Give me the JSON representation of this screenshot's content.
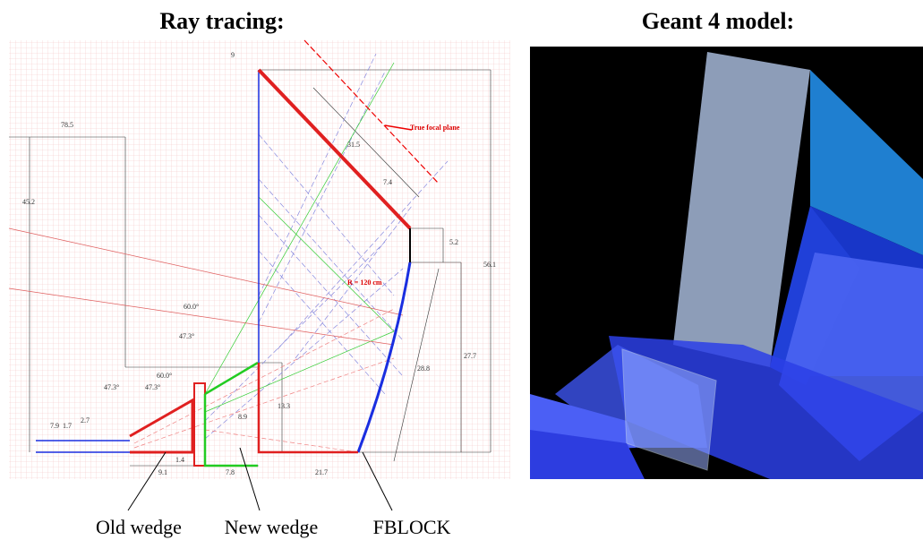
{
  "left_title": "Ray tracing:",
  "right_title": "Geant 4 model:",
  "callouts": [
    "Old wedge",
    "New wedge",
    "FBLOCK"
  ],
  "annotations": [
    "True focal plane",
    "R = 120 cm"
  ],
  "dimensions": [
    "9",
    "78.5",
    "45.2",
    "31.5",
    "7.4",
    "5.2",
    "56.1",
    "27.7",
    "28.8",
    "60.0°",
    "47.3°",
    "60.0°",
    "47.3°",
    "47.3°",
    "7.9",
    "1.7",
    "2.7",
    "8.9",
    "13.3",
    "9.1",
    "1.4",
    "7.8",
    "21.7"
  ]
}
